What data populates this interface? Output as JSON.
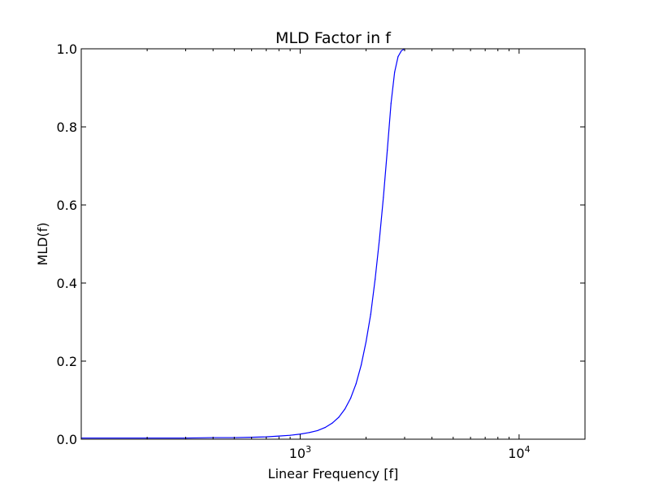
{
  "chart_data": {
    "type": "line",
    "title": "MLD Factor in f",
    "xlabel": "Linear Frequency [f]",
    "ylabel": "MLD(f)",
    "xscale": "log",
    "xlim": [
      100,
      20000
    ],
    "ylim": [
      0.0,
      1.0
    ],
    "grid": false,
    "legend": "none",
    "y_ticks": [
      "0.0",
      "0.2",
      "0.4",
      "0.6",
      "0.8",
      "1.0"
    ],
    "x_ticks": [
      {
        "base": "10",
        "exp": "3",
        "value": 1000
      },
      {
        "base": "10",
        "exp": "4",
        "value": 10000
      }
    ],
    "series": [
      {
        "color": "#0000ff",
        "x": [
          100,
          200,
          300,
          400,
          500,
          600,
          700,
          800,
          900,
          1000,
          1100,
          1200,
          1300,
          1400,
          1500,
          1600,
          1700,
          1800,
          1900,
          2000,
          2100,
          2200,
          2300,
          2400,
          2500,
          2600,
          2700,
          2800,
          2900,
          3000
        ],
        "y": [
          0.003,
          0.003,
          0.003,
          0.004,
          0.004,
          0.005,
          0.006,
          0.008,
          0.01,
          0.013,
          0.017,
          0.022,
          0.03,
          0.041,
          0.056,
          0.077,
          0.105,
          0.142,
          0.19,
          0.25,
          0.32,
          0.41,
          0.51,
          0.62,
          0.74,
          0.86,
          0.94,
          0.98,
          0.995,
          1.0
        ]
      }
    ]
  }
}
